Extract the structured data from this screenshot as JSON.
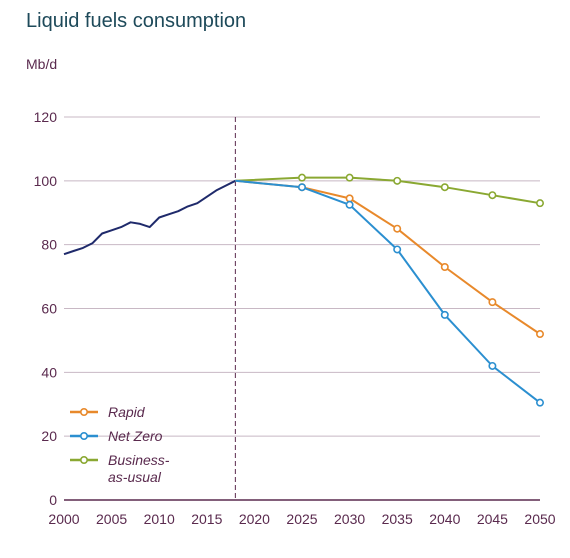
{
  "chart_data": {
    "type": "line",
    "title": "Liquid fuels consumption",
    "ylabel": "Mb/d",
    "xlim": [
      2000,
      2050
    ],
    "ylim": [
      0,
      120
    ],
    "x_ticks": [
      "2000",
      "2005",
      "2010",
      "2015",
      "2020",
      "2025",
      "2030",
      "2035",
      "2040",
      "2045",
      "2050"
    ],
    "y_ticks": [
      "0",
      "20",
      "40",
      "60",
      "80",
      "100",
      "120"
    ],
    "grid": true,
    "divider_year": 2018,
    "legend_position": "bottom-left",
    "colors": {
      "history": "#1f2a6b",
      "Rapid": "#e8892b",
      "Net Zero": "#2b8fd0",
      "Business-as-usual": "#8aa832",
      "text": "#5a2a4e",
      "grid": "#c8b8c4",
      "divider": "#5a2a4e"
    },
    "history": {
      "x": [
        2000,
        2001,
        2002,
        2003,
        2004,
        2005,
        2006,
        2007,
        2008,
        2009,
        2010,
        2011,
        2012,
        2013,
        2014,
        2015,
        2016,
        2017,
        2018
      ],
      "y": [
        77,
        78,
        79,
        80.5,
        83.5,
        84.5,
        85.5,
        87,
        86.5,
        85.5,
        88.5,
        89.5,
        90.5,
        92,
        93,
        95,
        97,
        98.5,
        100
      ]
    },
    "series": [
      {
        "name": "Rapid",
        "x": [
          2018,
          2025,
          2030,
          2035,
          2040,
          2045,
          2050
        ],
        "y": [
          100,
          98,
          94.5,
          85,
          73,
          62,
          52
        ]
      },
      {
        "name": "Net Zero",
        "x": [
          2018,
          2025,
          2030,
          2035,
          2040,
          2045,
          2050
        ],
        "y": [
          100,
          98,
          92.5,
          78.5,
          58,
          42,
          30.5
        ]
      },
      {
        "name": "Business-as-usual",
        "x": [
          2018,
          2025,
          2030,
          2035,
          2040,
          2045,
          2050
        ],
        "y": [
          100,
          101,
          101,
          100,
          98,
          95.5,
          93
        ]
      }
    ],
    "legend": [
      {
        "series": "Rapid",
        "lines": [
          "Rapid"
        ]
      },
      {
        "series": "Net Zero",
        "lines": [
          "Net Zero"
        ]
      },
      {
        "series": "Business-as-usual",
        "lines": [
          "Business-",
          "as-usual"
        ]
      }
    ]
  }
}
